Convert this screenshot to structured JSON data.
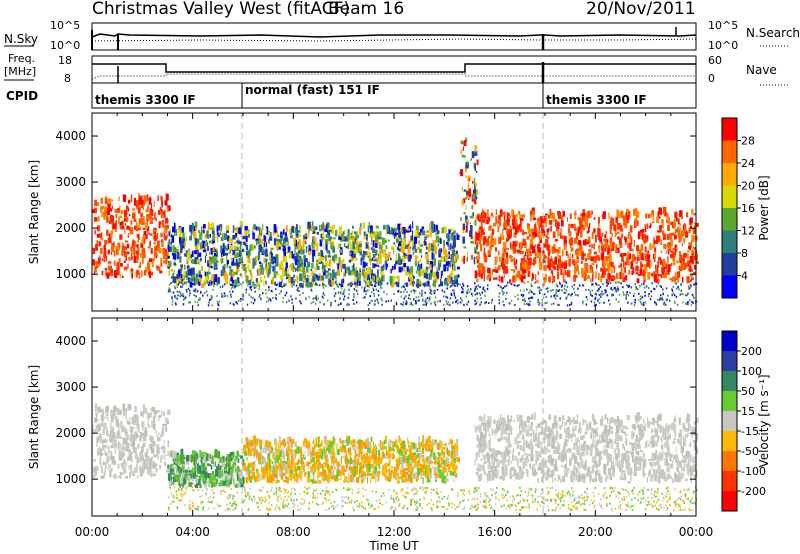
{
  "header": {
    "station": "Christmas Valley West (fitACF)",
    "beam": "Beam 16",
    "date": "20/Nov/2011"
  },
  "strip_panels": {
    "noise": {
      "left_label": "N.Sky",
      "right_label": "N.Search",
      "left_ticks": [
        "10^5",
        "10^0"
      ],
      "right_ticks": [
        "10^5",
        "10^0"
      ]
    },
    "freq": {
      "left_label_lines": [
        "Freq.",
        "[MHz]"
      ],
      "right_label": "Nave",
      "left_ticks": [
        "18",
        "8"
      ],
      "right_ticks": [
        "60",
        "0"
      ]
    },
    "cpid": {
      "label": "CPID",
      "segments": [
        {
          "start_hour": 0,
          "end_hour": 6,
          "text": "themis 3300 IF"
        },
        {
          "start_hour": 6,
          "end_hour": 18,
          "text": "normal (fast) 151 IF"
        },
        {
          "start_hour": 18,
          "end_hour": 24,
          "text": "themis 3300 IF"
        }
      ]
    }
  },
  "chart_data": [
    {
      "type": "heatmap",
      "name": "power",
      "ylabel": "Slant Range [km]",
      "ylim": [
        200,
        4500
      ],
      "y_ticks": [
        1000,
        2000,
        3000,
        4000
      ],
      "colorbar": {
        "label": "Power [dB]",
        "ticks": [
          "28",
          "24",
          "20",
          "16",
          "12",
          "8",
          "4"
        ],
        "colors": [
          "#ff0000",
          "#ff6600",
          "#ffaa00",
          "#d9d900",
          "#5aa832",
          "#2f7f7f",
          "#1e3f9f",
          "#0000ff"
        ]
      },
      "echo_regions": [
        {
          "hour_range": [
            0.0,
            3.0
          ],
          "range_km": [
            900,
            2600
          ],
          "level": "red"
        },
        {
          "hour_range": [
            3.0,
            14.5
          ],
          "range_km": [
            700,
            2000
          ],
          "level": "blue-green-yellow"
        },
        {
          "hour_range": [
            15.2,
            24.0
          ],
          "range_km": [
            800,
            2300
          ],
          "level": "red"
        },
        {
          "hour_range": [
            14.6,
            15.3
          ],
          "range_km": [
            1200,
            3900
          ],
          "level": "mixed"
        }
      ]
    },
    {
      "type": "heatmap",
      "name": "velocity",
      "xlabel": "Time UT",
      "ylabel": "Slant Range [km]",
      "ylim": [
        200,
        4500
      ],
      "y_ticks": [
        1000,
        2000,
        3000,
        4000
      ],
      "x_ticks": [
        "00:00",
        "04:00",
        "08:00",
        "12:00",
        "16:00",
        "20:00",
        "00:00"
      ],
      "xlim_hours": [
        0,
        24
      ],
      "colorbar": {
        "label": "Velocity [m s⁻¹]",
        "ticks": [
          "200",
          "100",
          "50",
          "15",
          "-15",
          "-50",
          "-100",
          "-200"
        ],
        "colors": [
          "#0000cc",
          "#2a3fa0",
          "#338866",
          "#66cc33",
          "#c8c8c0",
          "#ffbb00",
          "#ff7700",
          "#ff3300",
          "#ff0000"
        ]
      },
      "echo_regions": [
        {
          "hour_range": [
            0.0,
            3.0
          ],
          "range_km": [
            1000,
            2500
          ],
          "level": "gray"
        },
        {
          "hour_range": [
            3.0,
            6.0
          ],
          "range_km": [
            800,
            1500
          ],
          "level": "green"
        },
        {
          "hour_range": [
            6.0,
            14.5
          ],
          "range_km": [
            900,
            1800
          ],
          "level": "orange"
        },
        {
          "hour_range": [
            15.2,
            24.0
          ],
          "range_km": [
            900,
            2300
          ],
          "level": "gray"
        }
      ]
    }
  ]
}
